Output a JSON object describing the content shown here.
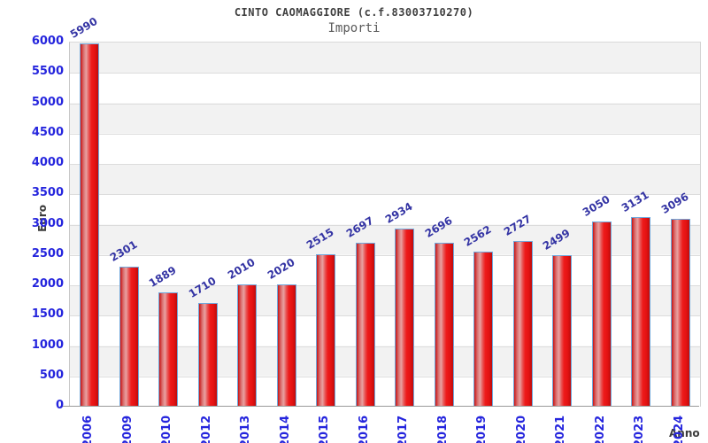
{
  "chart_data": {
    "type": "bar",
    "title": "CINTO CAOMAGGIORE (c.f.83003710270)",
    "subtitle": "Importi",
    "xlabel": "Anno",
    "ylabel": "Euro",
    "categories": [
      "2006",
      "2009",
      "2010",
      "2012",
      "2013",
      "2014",
      "2015",
      "2016",
      "2017",
      "2018",
      "2019",
      "2020",
      "2021",
      "2022",
      "2023",
      "2024"
    ],
    "values": [
      5990,
      2301,
      1889,
      1710,
      2010,
      2020,
      2515,
      2697,
      2934,
      2696,
      2562,
      2727,
      2499,
      3050,
      3131,
      3096
    ],
    "ylim": [
      0,
      6000
    ],
    "yticks": [
      0,
      500,
      1000,
      1500,
      2000,
      2500,
      3000,
      3500,
      4000,
      4500,
      5000,
      5500,
      6000
    ],
    "grid": true,
    "legend": "none",
    "bar_fill_color": "#e01818",
    "bar_border_color": "#6fa8dc",
    "value_label_color": "#3434a4",
    "tick_label_color": "#2525dd",
    "band_color": "#f2f2f2"
  }
}
